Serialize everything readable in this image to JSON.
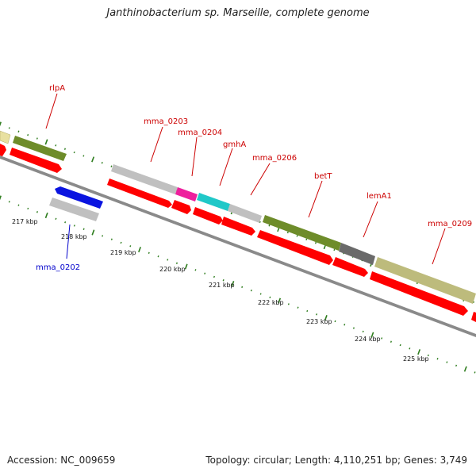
{
  "title": "Janthinobacterium sp. Marseille, complete genome",
  "footer": {
    "accession": "Accession: NC_009659",
    "topology": "Topology: circular; Length: 4,110,251 bp; Genes: 3,749"
  },
  "colors": {
    "red_gene": "#ff0000",
    "label_red": "#cc0000",
    "label_blue": "#0000cc",
    "tick_green": "#2e7d1e",
    "backbone": "#8a8a8a",
    "olive": "#6e8c2a",
    "khaki": "#bdbb7c",
    "pale_yellow": "#e8e0a0",
    "gray": "#c0c0c0",
    "magenta": "#ee1f9d",
    "cyan": "#20c8c8",
    "dark_gray": "#6a6a6a",
    "blue": "#0a14e0"
  },
  "scale_labels": [
    "217 kbp",
    "218 kbp",
    "219 kbp",
    "220 kbp",
    "221 kbp",
    "222 kbp",
    "223 kbp",
    "224 kbp",
    "225 kbp"
  ],
  "gene_labels": [
    {
      "text": "rlpA",
      "color": "red"
    },
    {
      "text": "mma_0203",
      "color": "red"
    },
    {
      "text": "mma_0204",
      "color": "red"
    },
    {
      "text": "gmhA",
      "color": "red"
    },
    {
      "text": "mma_0206",
      "color": "red"
    },
    {
      "text": "betT",
      "color": "red"
    },
    {
      "text": "lemA1",
      "color": "red"
    },
    {
      "text": "mma_0209",
      "color": "red"
    },
    {
      "text": "mma_0202",
      "color": "blue"
    }
  ]
}
